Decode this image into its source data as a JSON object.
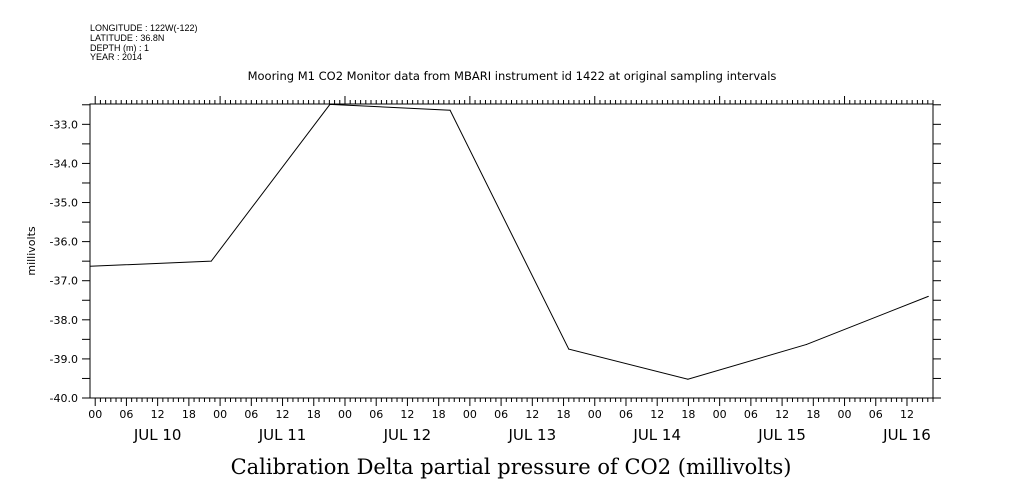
{
  "chart_data": {
    "type": "line",
    "title": "Mooring M1 CO2 Monitor data from MBARI instrument id 1422 at original sampling intervals",
    "header": [
      "LONGITUDE : 122W(-122)",
      "LATITUDE : 36.8N",
      "DEPTH (m) : 1",
      "YEAR : 2014"
    ],
    "xlabel": "Calibration Delta partial pressure of CO2 (millivolts)",
    "ylabel": "millivolts",
    "x_units": "hours since JUL 10 00:00",
    "xlim": [
      -1,
      161
    ],
    "ylim": [
      -40.0,
      -32.48
    ],
    "y_ticks": [
      -33.0,
      -34.0,
      -35.0,
      -36.0,
      -37.0,
      -38.0,
      -39.0,
      -40.0
    ],
    "y_tick_labels": [
      "-33.0",
      "-34.0",
      "-35.0",
      "-36.0",
      "-37.0",
      "-38.0",
      "-39.0",
      "-40.0"
    ],
    "x_hour_labels": [
      "00",
      "06",
      "12",
      "18",
      "00",
      "06",
      "12",
      "18",
      "00",
      "06",
      "12",
      "18",
      "00",
      "06",
      "12",
      "18",
      "00",
      "06",
      "12",
      "18",
      "00",
      "06",
      "12",
      "18",
      "00",
      "06",
      "12"
    ],
    "day_labels": [
      "JUL 10",
      "JUL 11",
      "JUL 12",
      "JUL 13",
      "JUL 14",
      "JUL 15",
      "JUL 16"
    ],
    "grid": false,
    "series": [
      {
        "name": "Calibration Delta partial pressure of CO2",
        "x": [
          -1.0,
          22.3,
          45.1,
          68.2,
          91.0,
          113.9,
          136.7,
          160.1
        ],
        "y": [
          -36.63,
          -36.5,
          -32.49,
          -32.64,
          -38.75,
          -39.52,
          -38.63,
          -37.4
        ]
      }
    ]
  }
}
